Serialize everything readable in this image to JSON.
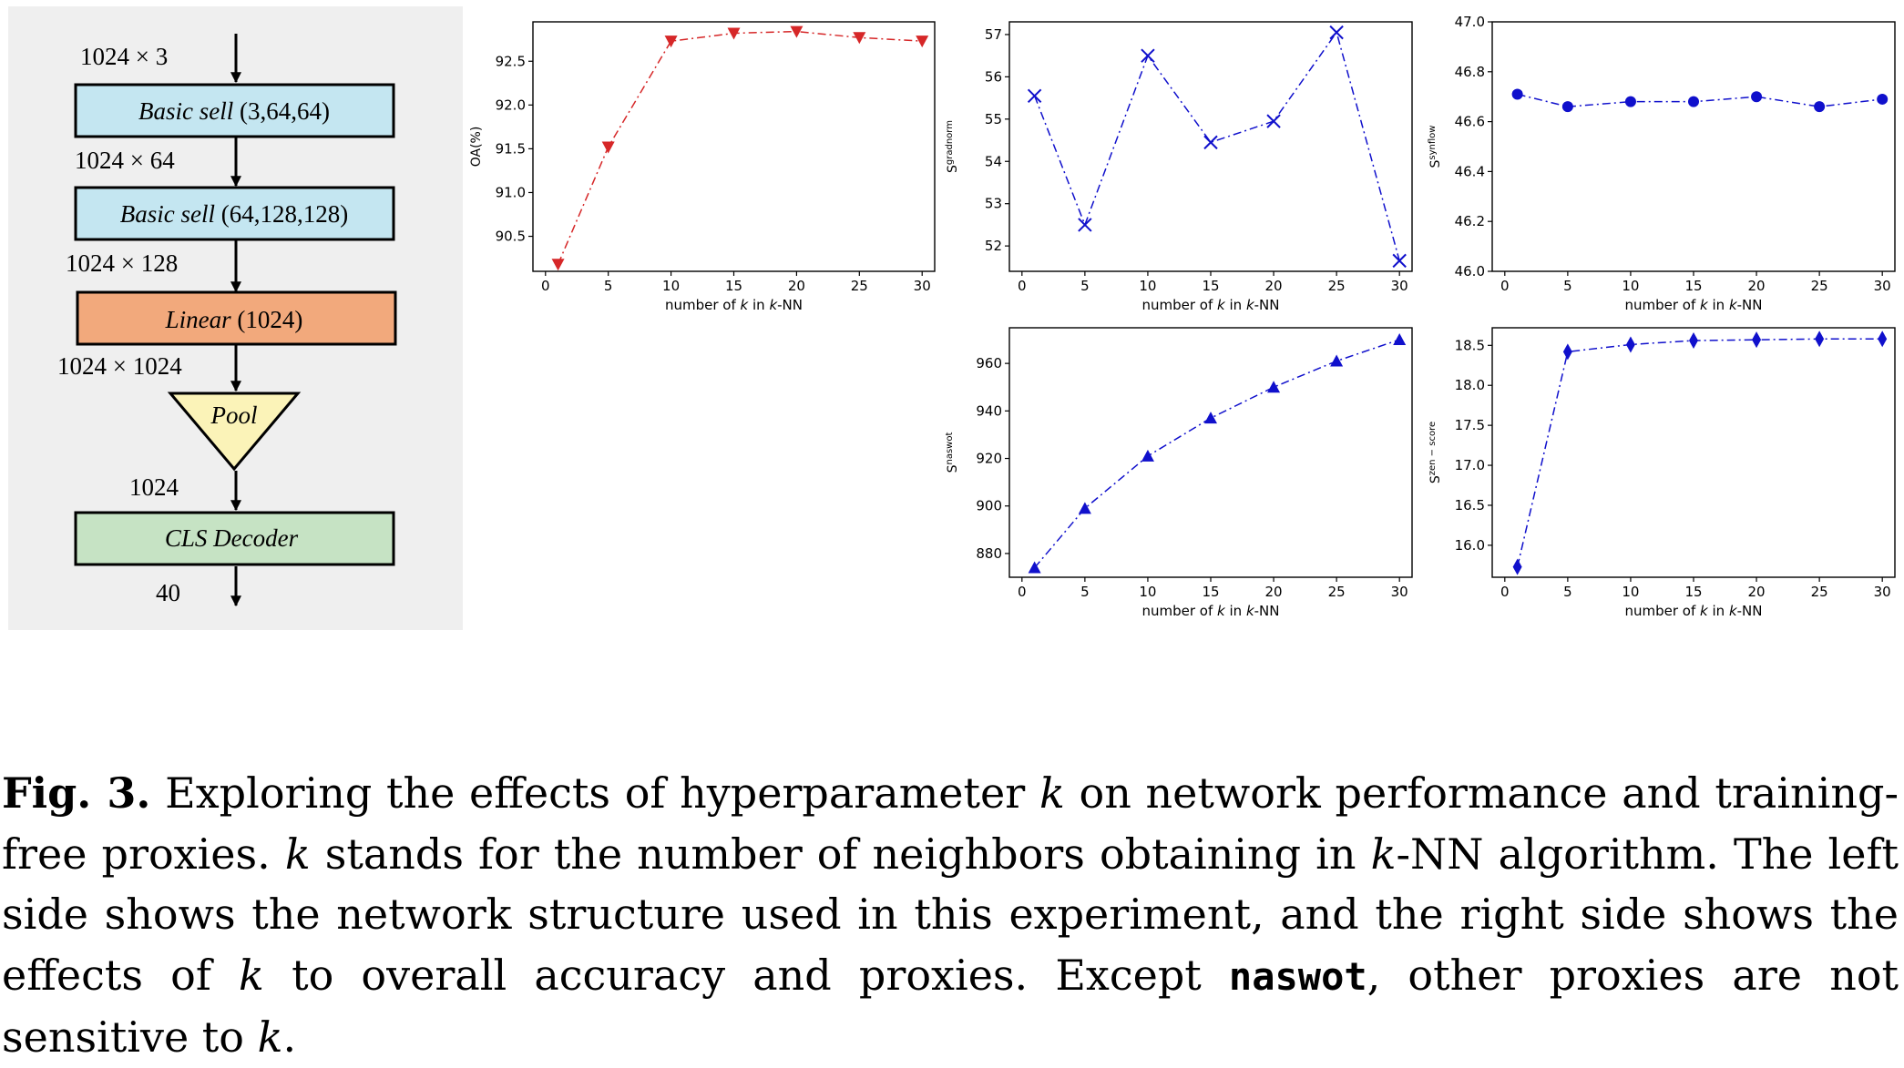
{
  "diagram": {
    "blocks": [
      {
        "name": "Basic sell",
        "args": "(3,64,64)",
        "color": "#c4e6f1"
      },
      {
        "name": "Basic sell",
        "args": "(64,128,128)",
        "color": "#c4e6f1"
      },
      {
        "name": "Linear",
        "args": "(1024)",
        "color": "#f2a97c"
      },
      {
        "name": "Pool",
        "args": "",
        "color": "#fbf3b8"
      },
      {
        "name": "CLS Decoder",
        "args": "",
        "color": "#c6e3c4"
      }
    ],
    "dims": [
      "1024 × 3",
      "1024 × 64",
      "1024 × 128",
      "1024 × 1024",
      "1024",
      "40"
    ]
  },
  "plots": [
    {
      "ylabel": "OA(%)",
      "ylabel_sup": "",
      "xlabel_pre": "number of ",
      "xlabel_k": "k",
      "xlabel_mid": " in ",
      "xlabel_k2": "k",
      "xlabel_post": "-NN",
      "color": "#d62728",
      "marker": "triangle-down",
      "xticks": [
        0,
        5,
        10,
        15,
        20,
        25,
        30
      ],
      "yticks": [
        "90.5",
        "91.0",
        "91.5",
        "92.0",
        "92.5"
      ]
    },
    {
      "ylabel": "S",
      "ylabel_sup": "gradnorm",
      "xlabel_pre": "number of ",
      "xlabel_k": "k",
      "xlabel_mid": " in ",
      "xlabel_k2": "k",
      "xlabel_post": "-NN",
      "color": "#1010cc",
      "marker": "x",
      "xticks": [
        0,
        5,
        10,
        15,
        20,
        25,
        30
      ],
      "yticks": [
        "52",
        "53",
        "54",
        "55",
        "56",
        "57"
      ]
    },
    {
      "ylabel": "S",
      "ylabel_sup": "synflow",
      "xlabel_pre": "number of ",
      "xlabel_k": "k",
      "xlabel_mid": " in ",
      "xlabel_k2": "k",
      "xlabel_post": "-NN",
      "color": "#1010cc",
      "marker": "circle",
      "xticks": [
        0,
        5,
        10,
        15,
        20,
        25,
        30
      ],
      "yticks": [
        "46.0",
        "46.2",
        "46.4",
        "46.6",
        "46.8",
        "47.0"
      ]
    },
    {
      "ylabel": "S",
      "ylabel_sup": "naswot",
      "xlabel_pre": "number of ",
      "xlabel_k": "k",
      "xlabel_mid": " in ",
      "xlabel_k2": "k",
      "xlabel_post": "-NN",
      "color": "#1010cc",
      "marker": "triangle-up",
      "xticks": [
        0,
        5,
        10,
        15,
        20,
        25,
        30
      ],
      "yticks": [
        "880",
        "900",
        "920",
        "940",
        "960"
      ]
    },
    {
      "ylabel": "S",
      "ylabel_sup": "zen − score",
      "xlabel_pre": "number of ",
      "xlabel_k": "k",
      "xlabel_mid": " in ",
      "xlabel_k2": "k",
      "xlabel_post": "-NN",
      "color": "#1010cc",
      "marker": "diamond",
      "xticks": [
        0,
        5,
        10,
        15,
        20,
        25,
        30
      ],
      "yticks": [
        "16.0",
        "16.5",
        "17.0",
        "17.5",
        "18.0",
        "18.5"
      ]
    }
  ],
  "chart_data": [
    {
      "type": "line",
      "ylabel": "OA(%)",
      "xlabel": "number of k in k-NN",
      "xlim": [
        -1,
        31
      ],
      "ylim": [
        90.1,
        92.95
      ],
      "series": [
        {
          "x": [
            1,
            5,
            10,
            15,
            20,
            25,
            30
          ],
          "values": [
            90.18,
            91.52,
            92.73,
            92.82,
            92.84,
            92.77,
            92.73
          ]
        }
      ]
    },
    {
      "type": "line",
      "ylabel": "S^gradnorm",
      "xlabel": "number of k in k-NN",
      "xlim": [
        -1,
        31
      ],
      "ylim": [
        51.4,
        57.3
      ],
      "series": [
        {
          "x": [
            1,
            5,
            10,
            15,
            20,
            25,
            30
          ],
          "values": [
            55.55,
            52.5,
            56.5,
            54.45,
            54.95,
            57.05,
            51.65
          ]
        }
      ]
    },
    {
      "type": "line",
      "ylabel": "S^synflow",
      "xlabel": "number of k in k-NN",
      "xlim": [
        -1,
        31
      ],
      "ylim": [
        46.0,
        47.0
      ],
      "series": [
        {
          "x": [
            1,
            5,
            10,
            15,
            20,
            25,
            30
          ],
          "values": [
            46.71,
            46.66,
            46.68,
            46.68,
            46.7,
            46.66,
            46.69
          ]
        }
      ]
    },
    {
      "type": "line",
      "ylabel": "S^naswot",
      "xlabel": "number of k in k-NN",
      "xlim": [
        -1,
        31
      ],
      "ylim": [
        870,
        975
      ],
      "series": [
        {
          "x": [
            1,
            5,
            10,
            15,
            20,
            25,
            30
          ],
          "values": [
            874,
            899,
            921,
            937,
            950,
            961,
            970
          ]
        }
      ]
    },
    {
      "type": "line",
      "ylabel": "S^zen−score",
      "xlabel": "number of k in k-NN",
      "xlim": [
        -1,
        31
      ],
      "ylim": [
        15.6,
        18.72
      ],
      "series": [
        {
          "x": [
            1,
            5,
            10,
            15,
            20,
            25,
            30
          ],
          "values": [
            15.73,
            18.42,
            18.51,
            18.56,
            18.57,
            18.58,
            18.58
          ]
        }
      ]
    }
  ],
  "caption": {
    "label": "Fig. 3.",
    "t1": " Exploring the effects of hyperparameter ",
    "k1": "k",
    "t2": " on network performance and training-free proxies. ",
    "k2": "k",
    "t3": " stands for the number of neighbors obtaining in ",
    "k3": "k",
    "t4": "-NN algorithm. The left side shows the network structure used in this experiment, and the right side shows the effects of ",
    "k4": "k",
    "t5": " to overall accuracy and proxies. Except ",
    "code": "naswot",
    "t6": ", other proxies are not sensitive to ",
    "k5": "k",
    "t7": "."
  }
}
